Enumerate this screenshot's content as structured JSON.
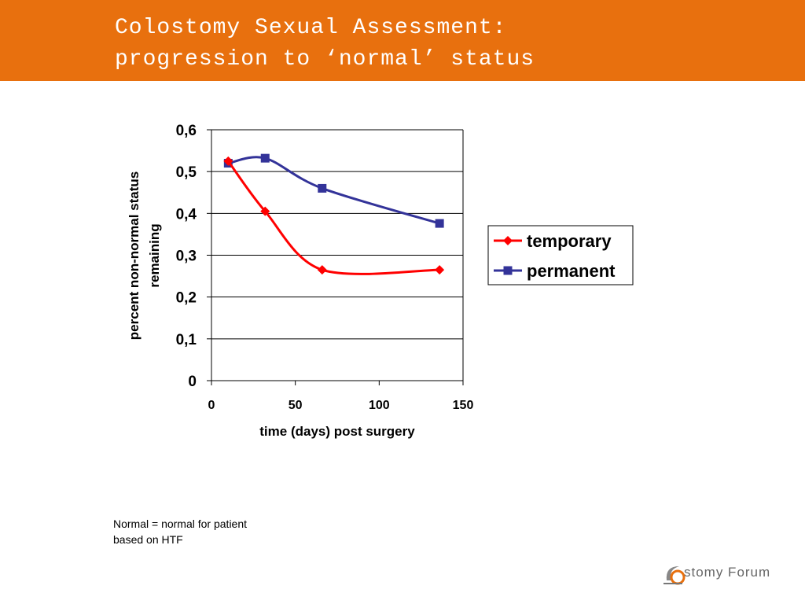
{
  "slide": {
    "title_line_1": "Colostomy Sexual Assessment:",
    "title_line_2": "progression to ‘normal’ status",
    "note_line_1": "Normal = normal for patient",
    "note_line_2": "based on HTF",
    "logo_text": "stomy Forum",
    "accent_color": "#E8700E"
  },
  "chart_data": {
    "type": "line",
    "title": "",
    "xlabel": "time (days) post surgery",
    "ylabel_line_1": "percent non-normal status",
    "ylabel_line_2": "remaining",
    "xlim": [
      0,
      150
    ],
    "ylim": [
      0,
      0.6
    ],
    "x_ticks": [
      0,
      50,
      100,
      150
    ],
    "x_tick_labels": [
      "0",
      "50",
      "100",
      "150"
    ],
    "y_ticks": [
      0,
      0.1,
      0.2,
      0.3,
      0.4,
      0.5,
      0.6
    ],
    "y_tick_labels": [
      "0",
      "0,1",
      "0,2",
      "0,3",
      "0,4",
      "0,5",
      "0,6"
    ],
    "grid": "horizontal",
    "legend_position": "right",
    "series": [
      {
        "name": "temporary",
        "color": "#FF0000",
        "marker": "diamond",
        "x": [
          10,
          32,
          66,
          136
        ],
        "y": [
          0.525,
          0.405,
          0.265,
          0.265
        ]
      },
      {
        "name": "permanent",
        "color": "#333399",
        "marker": "square",
        "x": [
          10,
          32,
          66,
          136
        ],
        "y": [
          0.52,
          0.532,
          0.46,
          0.376
        ]
      }
    ]
  }
}
